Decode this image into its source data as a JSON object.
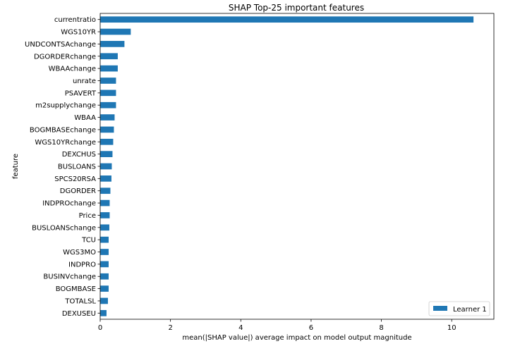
{
  "chart_data": {
    "type": "bar",
    "orientation": "horizontal",
    "title": "SHAP Top-25 important features",
    "xlabel": "mean(|SHAP value|) average impact on model output magnitude",
    "ylabel": "feature",
    "xlim": [
      0,
      11.2
    ],
    "xticks": [
      0,
      2,
      4,
      6,
      8,
      10
    ],
    "grid": false,
    "legend_placement": "lower-right",
    "bar_color": "#1f77b4",
    "categories": [
      "currentratio",
      "WGS10YR",
      "UNDCONTSAchange",
      "DGORDERchange",
      "WBAAchange",
      "unrate",
      "PSAVERT",
      "m2supplychange",
      "WBAA",
      "BOGMBASEchange",
      "WGS10YRchange",
      "DEXCHUS",
      "BUSLOANS",
      "SPCS20RSA",
      "DGORDER",
      "INDPROchange",
      "Price",
      "BUSLOANSchange",
      "TCU",
      "WGS3MO",
      "INDPRO",
      "BUSINVchange",
      "BOGMBASE",
      "TOTALSL",
      "DEXUSEU"
    ],
    "series": [
      {
        "name": "Learner 1",
        "values": [
          10.62,
          0.87,
          0.69,
          0.5,
          0.5,
          0.45,
          0.45,
          0.45,
          0.41,
          0.39,
          0.37,
          0.35,
          0.33,
          0.32,
          0.29,
          0.27,
          0.27,
          0.26,
          0.24,
          0.24,
          0.24,
          0.24,
          0.24,
          0.22,
          0.18
        ]
      }
    ]
  }
}
